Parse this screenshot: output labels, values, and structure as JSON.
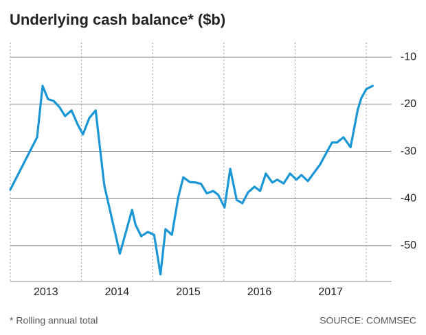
{
  "chart_data": {
    "type": "line",
    "title": "Underlying cash balance* ($b)",
    "footnote": "* Rolling annual total",
    "source": "SOURCE: COMMSEC",
    "color": "#1a96d4",
    "x": [
      2012.5,
      2012.876,
      2012.954,
      2013.03,
      2013.11,
      2013.19,
      2013.27,
      2013.36,
      2013.45,
      2013.52,
      2013.61,
      2013.7,
      2013.75,
      2013.82,
      2013.93,
      2014.04,
      2014.21,
      2014.26,
      2014.34,
      2014.43,
      2014.52,
      2014.61,
      2014.68,
      2014.77,
      2014.86,
      2014.93,
      2015.02,
      2015.11,
      2015.18,
      2015.26,
      2015.35,
      2015.42,
      2015.51,
      2015.59,
      2015.68,
      2015.76,
      2015.84,
      2015.93,
      2016.01,
      2016.09,
      2016.18,
      2016.25,
      2016.34,
      2016.43,
      2016.52,
      2016.59,
      2016.68,
      2016.85,
      2017.02,
      2017.09,
      2017.18,
      2017.28,
      2017.38,
      2017.43,
      2017.5,
      2017.59
    ],
    "values": [
      -38.1,
      -27.0,
      -16.1,
      -18.9,
      -19.3,
      -20.6,
      -22.5,
      -21.3,
      -24.4,
      -26.4,
      -22.9,
      -21.3,
      -28.0,
      -37.2,
      -44.5,
      -51.7,
      -42.4,
      -45.6,
      -48.0,
      -47.1,
      -47.7,
      -56.1,
      -46.5,
      -47.7,
      -39.7,
      -35.5,
      -36.5,
      -36.6,
      -36.9,
      -38.9,
      -38.4,
      -39.2,
      -41.9,
      -33.7,
      -40.3,
      -41.0,
      -38.7,
      -37.5,
      -38.4,
      -34.7,
      -36.6,
      -36.0,
      -36.8,
      -34.7,
      -36.0,
      -35.0,
      -36.3,
      -32.8,
      -28.1,
      -28.1,
      -27.0,
      -29.1,
      -21.2,
      -18.7,
      -16.8,
      -16.1
    ],
    "xlim": [
      2012.5,
      2017.857
    ],
    "xticks": [
      2013,
      2014,
      2015,
      2016,
      2017
    ],
    "ylim": [
      -57.6,
      -6.9
    ],
    "yticks": [
      -10,
      -20,
      -30,
      -40,
      -50
    ],
    "grid": true
  }
}
